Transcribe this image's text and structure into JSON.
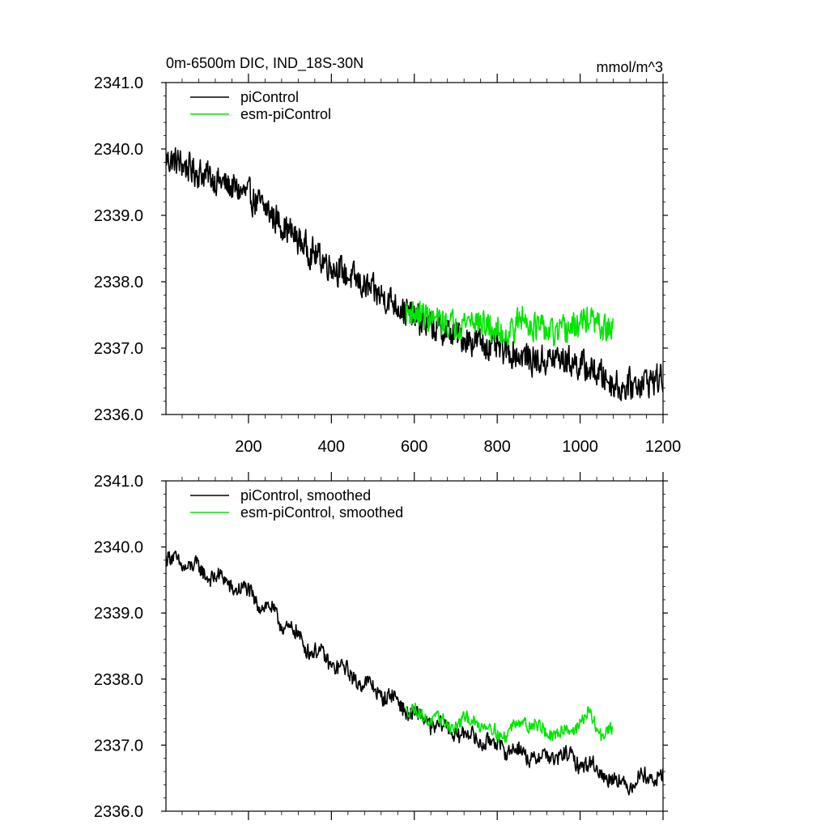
{
  "chart_data": [
    {
      "type": "line",
      "title": "0m-6500m DIC, IND_18S-30N",
      "units": "mmol/m^3",
      "xlim": [
        1,
        1200
      ],
      "ylim": [
        2336.0,
        2341.0
      ],
      "xticks": [
        200,
        400,
        600,
        800,
        1000,
        1200
      ],
      "yticks": [
        "2336.0",
        "2337.0",
        "2338.0",
        "2339.0",
        "2340.0",
        "2341.0"
      ],
      "show_x_tick_labels": true,
      "legend": "top-left",
      "series": [
        {
          "name": "piControl",
          "color": "#000000",
          "x_start": 1,
          "x_end": 1200,
          "anchors_x": [
            1,
            30,
            60,
            100,
            150,
            200,
            250,
            300,
            350,
            400,
            450,
            500,
            550,
            600,
            650,
            700,
            750,
            800,
            850,
            900,
            950,
            1000,
            1050,
            1100,
            1150,
            1200
          ],
          "anchors_y": [
            2339.85,
            2339.8,
            2339.7,
            2339.6,
            2339.45,
            2339.3,
            2339.05,
            2338.75,
            2338.45,
            2338.25,
            2338.05,
            2337.85,
            2337.7,
            2337.45,
            2337.3,
            2337.2,
            2337.1,
            2337.0,
            2336.9,
            2336.8,
            2336.85,
            2336.75,
            2336.6,
            2336.4,
            2336.5,
            2336.55
          ],
          "noise": 0.26
        },
        {
          "name": "esm-piControl",
          "color": "#00e600",
          "x_start": 580,
          "x_end": 1080,
          "anchors_x": [
            580,
            620,
            660,
            700,
            740,
            780,
            820,
            860,
            900,
            940,
            980,
            1020,
            1050,
            1080
          ],
          "anchors_y": [
            2337.55,
            2337.5,
            2337.4,
            2337.35,
            2337.45,
            2337.3,
            2337.2,
            2337.45,
            2337.3,
            2337.2,
            2337.3,
            2337.45,
            2337.3,
            2337.25
          ],
          "noise": 0.24
        }
      ]
    },
    {
      "type": "line",
      "title": "",
      "units": "",
      "xlim": [
        1,
        1200
      ],
      "ylim": [
        2336.0,
        2341.0
      ],
      "xticks": [
        200,
        400,
        600,
        800,
        1000,
        1200
      ],
      "yticks": [
        "2336.0",
        "2337.0",
        "2338.0",
        "2339.0",
        "2340.0",
        "2341.0"
      ],
      "show_x_tick_labels": false,
      "legend": "top-left",
      "series": [
        {
          "name": "piControl, smoothed",
          "color": "#000000",
          "x_start": 1,
          "x_end": 1200,
          "anchors_x": [
            1,
            30,
            60,
            100,
            150,
            200,
            250,
            300,
            350,
            400,
            450,
            500,
            550,
            600,
            650,
            700,
            750,
            800,
            850,
            900,
            950,
            1000,
            1050,
            1100,
            1150,
            1200
          ],
          "anchors_y": [
            2339.8,
            2339.78,
            2339.7,
            2339.6,
            2339.45,
            2339.3,
            2339.05,
            2338.75,
            2338.45,
            2338.25,
            2338.05,
            2337.85,
            2337.7,
            2337.45,
            2337.3,
            2337.2,
            2337.1,
            2337.0,
            2336.9,
            2336.8,
            2336.85,
            2336.75,
            2336.6,
            2336.4,
            2336.5,
            2336.55
          ],
          "noise": 0.12
        },
        {
          "name": "esm-piControl, smoothed",
          "color": "#00e600",
          "x_start": 580,
          "x_end": 1080,
          "anchors_x": [
            580,
            620,
            660,
            700,
            740,
            780,
            820,
            860,
            900,
            940,
            980,
            1020,
            1050,
            1080
          ],
          "anchors_y": [
            2337.55,
            2337.45,
            2337.35,
            2337.3,
            2337.4,
            2337.25,
            2337.15,
            2337.4,
            2337.25,
            2337.15,
            2337.25,
            2337.45,
            2337.2,
            2337.2
          ],
          "noise": 0.1
        }
      ]
    }
  ]
}
